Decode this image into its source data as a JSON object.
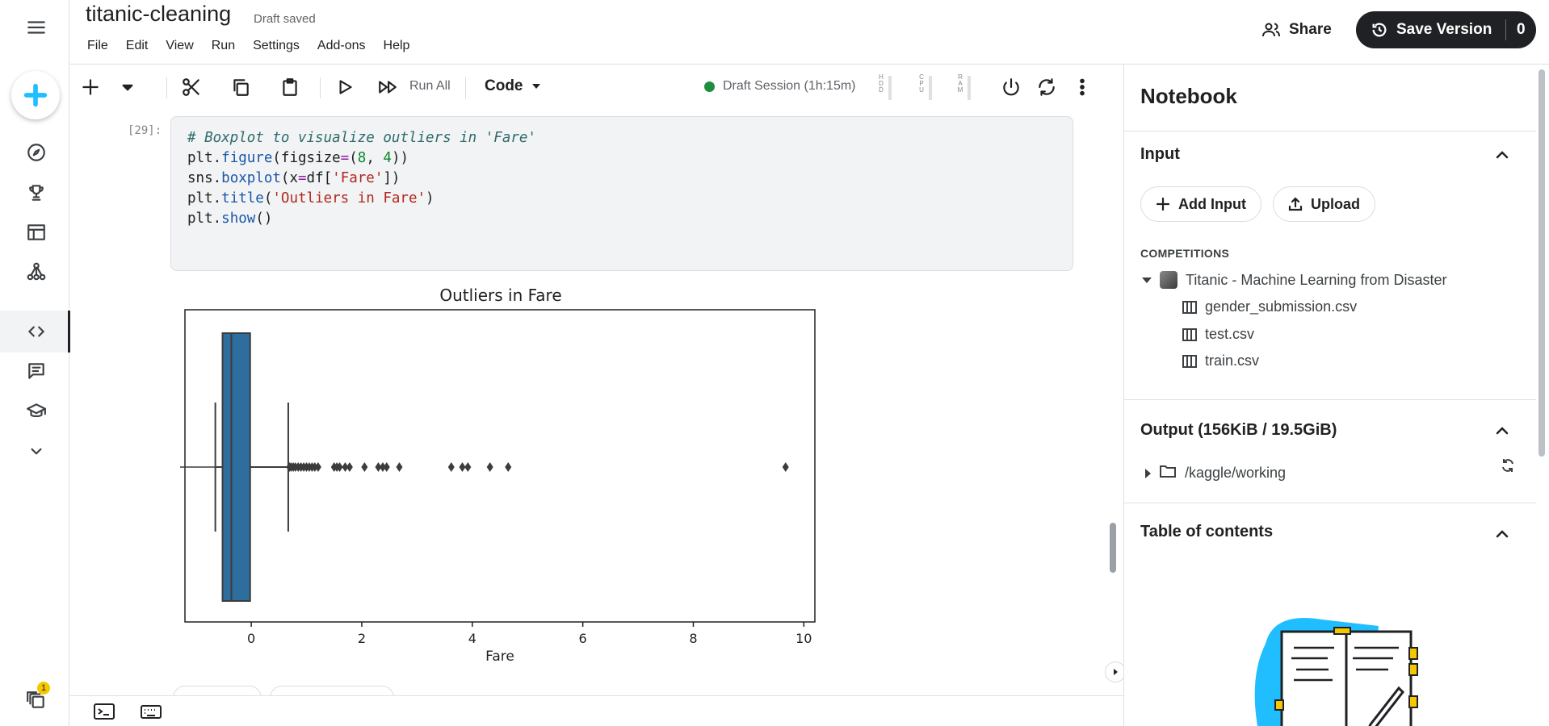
{
  "notebook": {
    "title": "titanic-cleaning",
    "status": "Draft saved"
  },
  "menu": [
    "File",
    "Edit",
    "View",
    "Run",
    "Settings",
    "Add-ons",
    "Help"
  ],
  "header": {
    "share_label": "Share",
    "save_version_label": "Save Version",
    "save_version_count": "0"
  },
  "toolbar": {
    "run_all_label": "Run All",
    "cell_type": "Code",
    "session_label": "Draft Session (1h:15m)",
    "session_status_color": "#1e8e3e",
    "meters": [
      {
        "label": "HDD",
        "letters": [
          "H",
          "D",
          "D"
        ]
      },
      {
        "label": "CPU",
        "letters": [
          "C",
          "P",
          "U"
        ]
      },
      {
        "label": "RAM",
        "letters": [
          "R",
          "A",
          "M"
        ]
      }
    ]
  },
  "cell": {
    "execution_count": "[29]:",
    "code": [
      "# Boxplot to visualize outliers in 'Fare'",
      "plt.figure(figsize=(8, 4))",
      "sns.boxplot(x=df['Fare'])",
      "plt.title('Outliers in Fare')",
      "plt.show()"
    ]
  },
  "chart_data": {
    "type": "boxplot",
    "title": "Outliers in Fare",
    "xlabel": "Fare",
    "xlim": [
      -1.2,
      10.2
    ],
    "xticks": [
      0,
      2,
      4,
      6,
      8,
      10
    ],
    "box": {
      "q1": -0.52,
      "median": -0.36,
      "q3": -0.02,
      "whisker_low": -0.65,
      "whisker_high": 0.67
    },
    "outliers": [
      0.69,
      0.72,
      0.76,
      0.8,
      0.85,
      0.9,
      0.95,
      1.0,
      1.05,
      1.1,
      1.15,
      1.21,
      1.5,
      1.55,
      1.6,
      1.7,
      1.78,
      2.05,
      2.3,
      2.38,
      2.45,
      2.68,
      3.62,
      3.82,
      3.92,
      4.32,
      4.65,
      9.67
    ],
    "box_color": "#2e6e9e",
    "grid": false
  },
  "panel": {
    "title": "Notebook",
    "input_heading": "Input",
    "add_input_label": "Add Input",
    "upload_label": "Upload",
    "competitions_label": "COMPETITIONS",
    "competition_name": "Titanic - Machine Learning from Disaster",
    "files": [
      "gender_submission.csv",
      "test.csv",
      "train.csv"
    ],
    "output_heading": "Output (156KiB / 19.5GiB)",
    "output_path": "/kaggle/working",
    "toc_heading": "Table of contents"
  },
  "rail": {
    "notification_count": "1"
  },
  "colors": {
    "accent": "#20beff",
    "primary_button": "#202124"
  }
}
